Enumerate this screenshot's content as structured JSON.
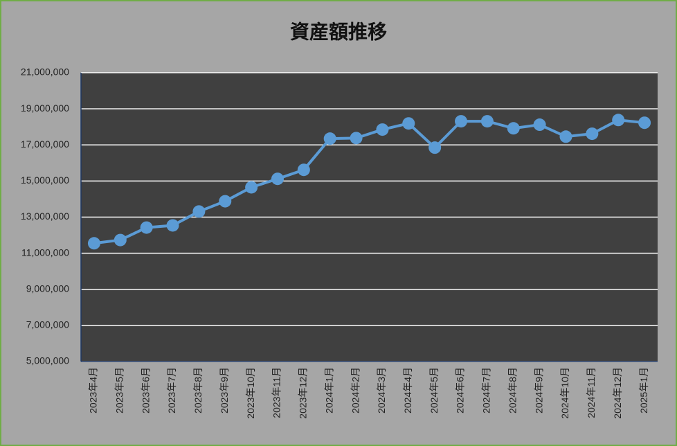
{
  "chart_data": {
    "type": "line",
    "title": "資産額推移",
    "categories": [
      "2023年4月",
      "2023年5月",
      "2023年6月",
      "2023年7月",
      "2023年8月",
      "2023年9月",
      "2023年10月",
      "2023年11月",
      "2023年12月",
      "2024年1月",
      "2024年2月",
      "2024年3月",
      "2024年4月",
      "2024年5月",
      "2024年6月",
      "2024年7月",
      "2024年8月",
      "2024年9月",
      "2024年10月",
      "2024年11月",
      "2024年12月",
      "2025年1月"
    ],
    "series": [
      {
        "name": "資産額",
        "color": "#5b9bd5",
        "values": [
          11550000,
          11730000,
          12420000,
          12540000,
          13310000,
          13880000,
          14650000,
          15120000,
          15620000,
          17350000,
          17380000,
          17850000,
          18190000,
          16850000,
          18310000,
          18310000,
          17920000,
          18120000,
          17460000,
          17620000,
          18380000,
          18230000
        ]
      }
    ],
    "ylim": [
      5000000,
      21000000
    ],
    "yticks": [
      {
        "value": 5000000,
        "label": "5,000,000"
      },
      {
        "value": 7000000,
        "label": "7,000,000"
      },
      {
        "value": 9000000,
        "label": "9,000,000"
      },
      {
        "value": 11000000,
        "label": "11,000,000"
      },
      {
        "value": 13000000,
        "label": "13,000,000"
      },
      {
        "value": 15000000,
        "label": "15,000,000"
      },
      {
        "value": 17000000,
        "label": "17,000,000"
      },
      {
        "value": 19000000,
        "label": "19,000,000"
      },
      {
        "value": 21000000,
        "label": "21,000,000"
      }
    ],
    "grid": true
  }
}
